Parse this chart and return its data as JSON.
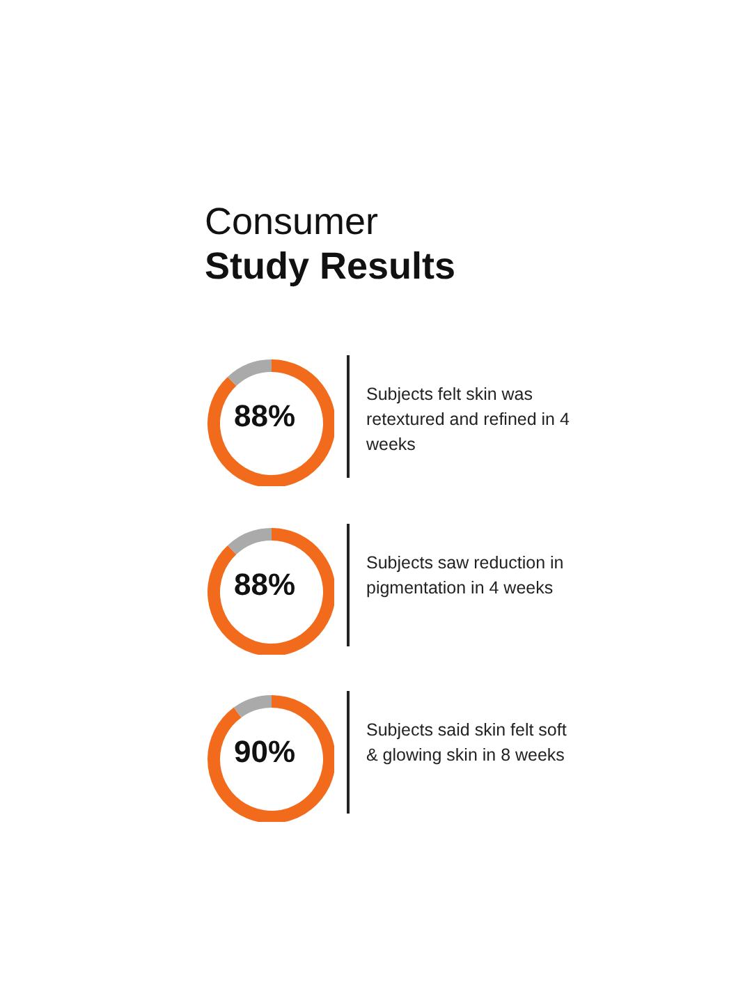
{
  "chart_data": [
    {
      "type": "donut",
      "title": "Consumer",
      "subtitle": "Study Results",
      "categories": [
        null,
        null
      ],
      "values": [
        88,
        12
      ],
      "colors": [
        "#f26a1b",
        "#aaaaaa"
      ],
      "value_labels": [
        "88%",
        null
      ],
      "annotations": [
        "Subjects felt skin was retextured and refined in 4 weeks"
      ]
    },
    {
      "type": "donut",
      "categories": [
        null,
        null
      ],
      "values": [
        88,
        12
      ],
      "colors": [
        "#f26a1b",
        "#aaaaaa"
      ],
      "value_labels": [
        "88%",
        null
      ],
      "annotations": [
        "Subjects saw reduction in pigmentation in 4 weeks"
      ]
    },
    {
      "type": "donut",
      "categories": [
        null,
        null
      ],
      "values": [
        90,
        10
      ],
      "colors": [
        "#f26a1b",
        "#aaaaaa"
      ],
      "value_labels": [
        "90%",
        null
      ],
      "annotations": [
        "Subjects said skin felt soft & glowing skin in 8 weeks"
      ]
    }
  ]
}
